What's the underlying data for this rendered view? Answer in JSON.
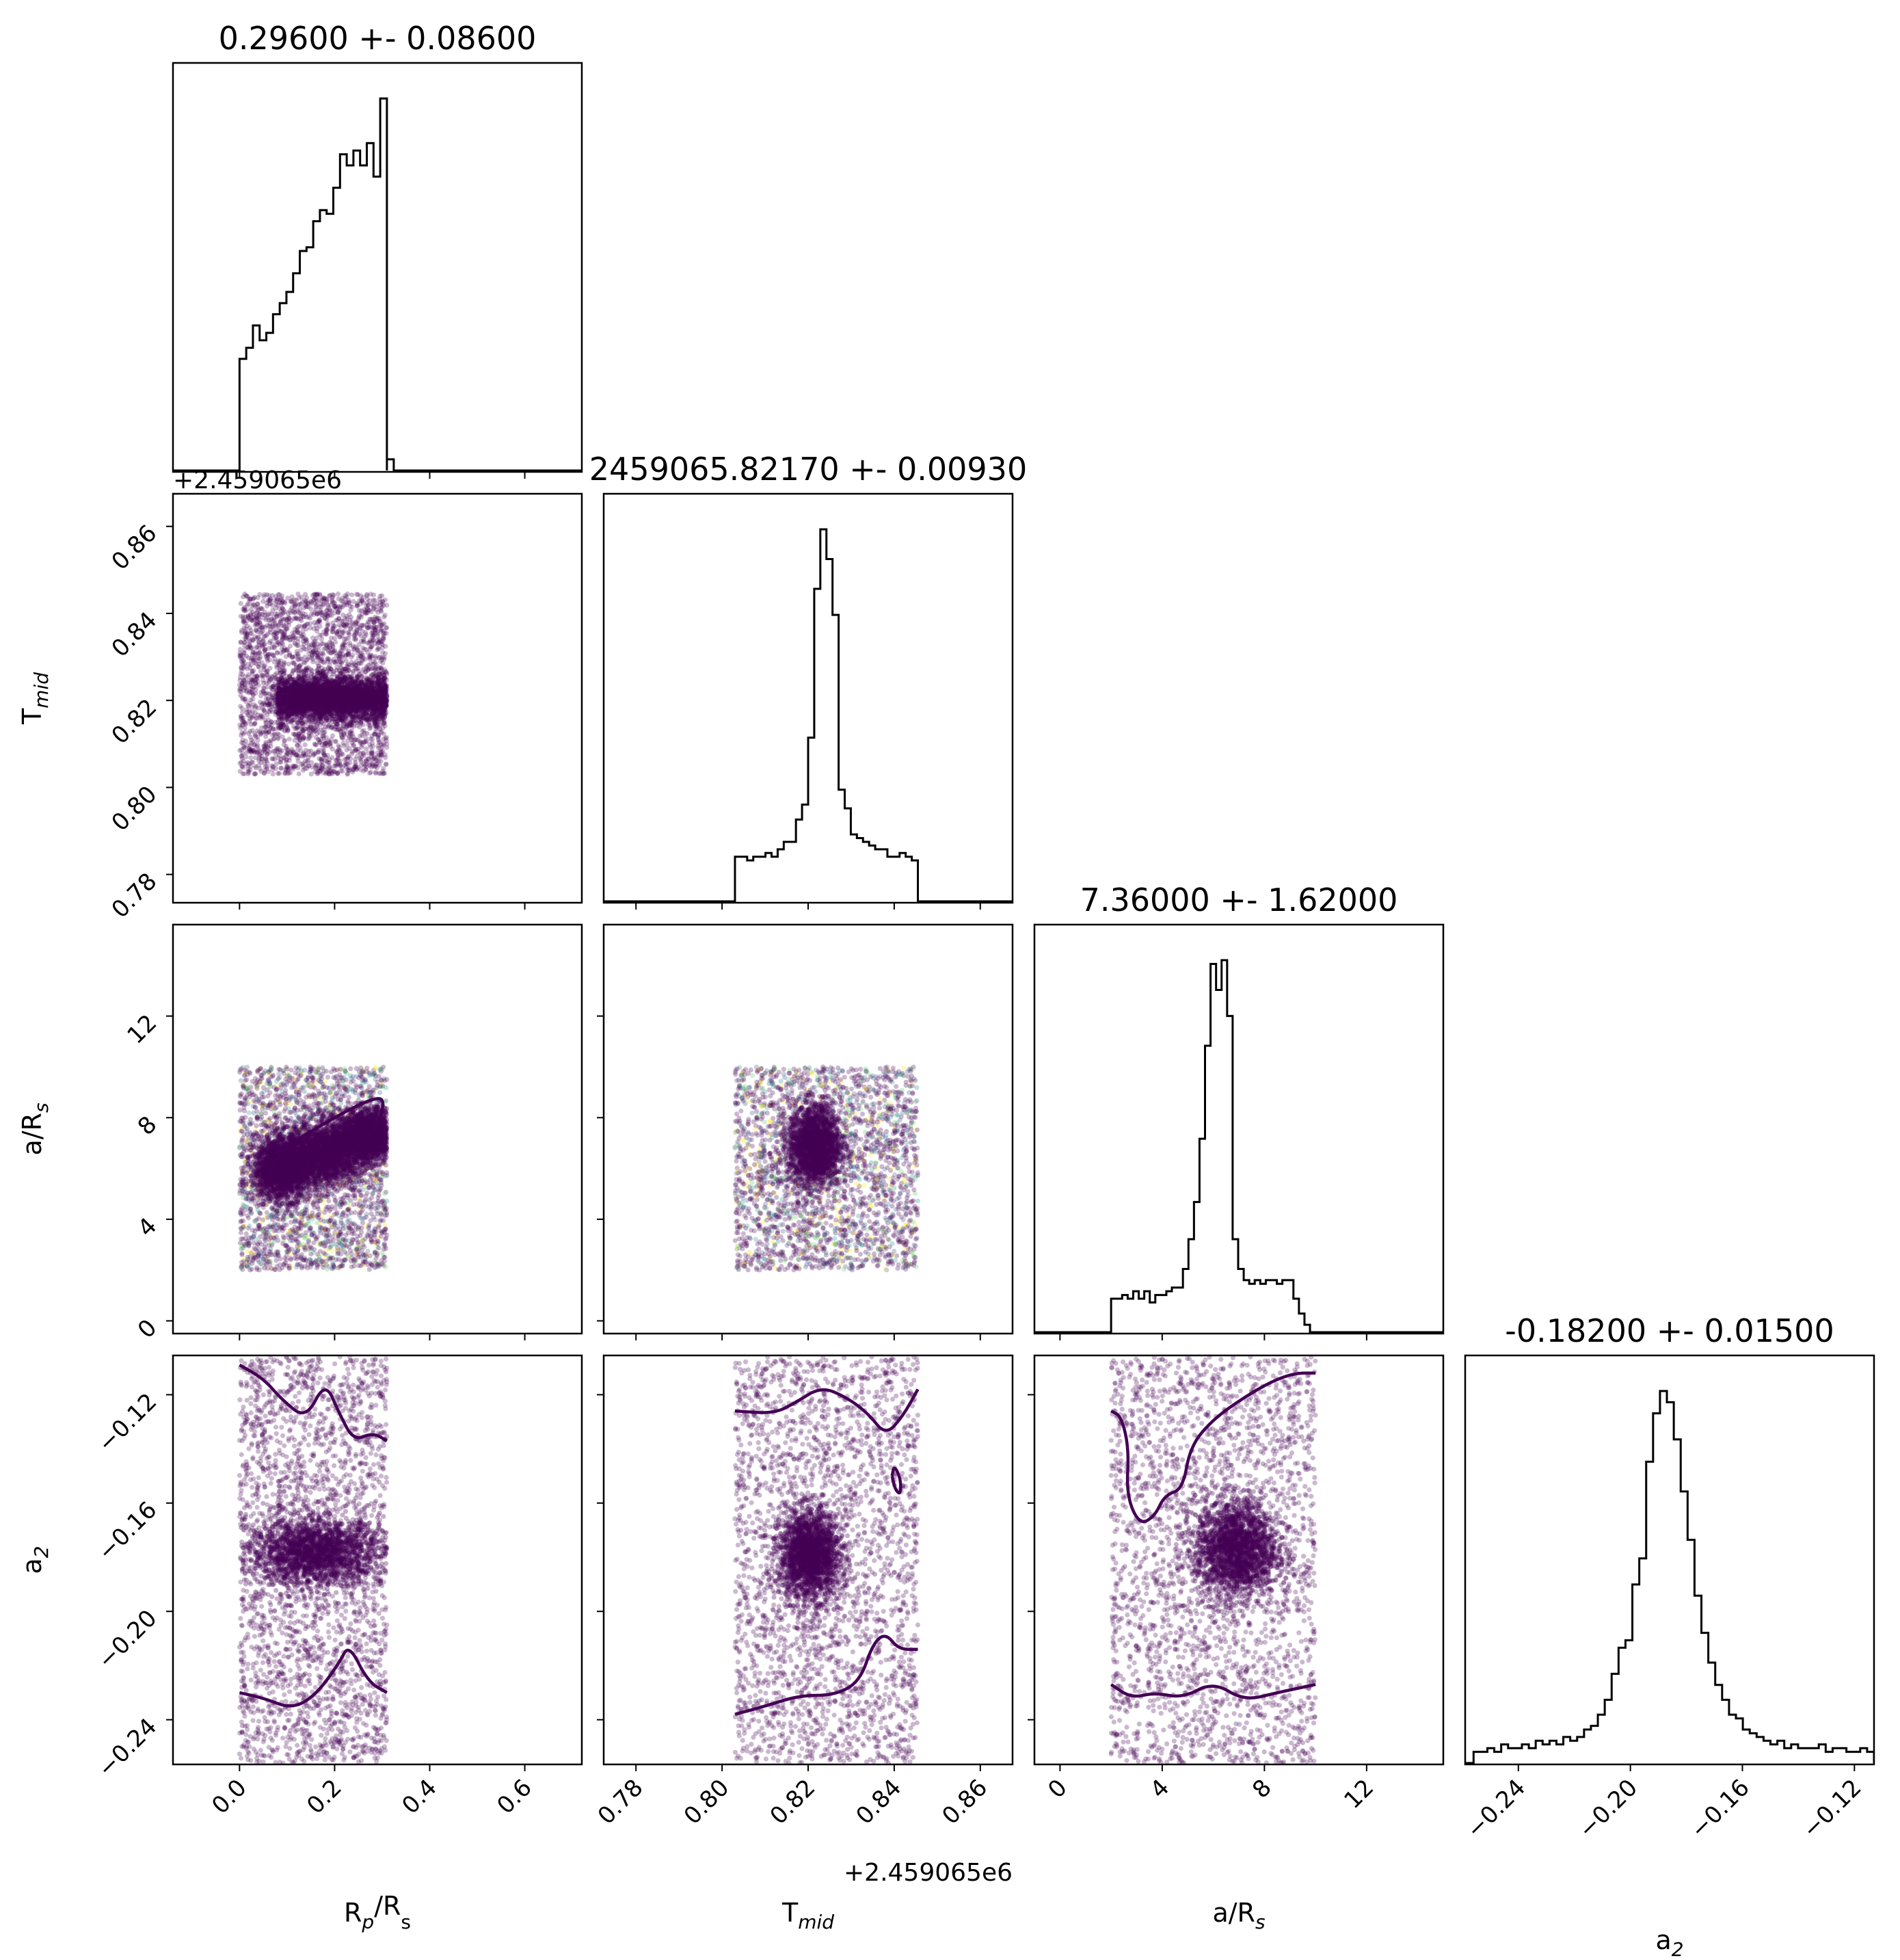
{
  "chart_data": {
    "type": "scatter",
    "parameters": [
      "R_p/R_s",
      "T_mid",
      "a/R_s",
      "a_2"
    ],
    "colors": {
      "line": "#000000",
      "points": "#440154",
      "contour": "#440154",
      "viridis": [
        "#440154",
        "#3b528b",
        "#21918c",
        "#5ec962",
        "#fde725"
      ]
    },
    "panels": {
      "hist": [
        {
          "title": "0.29600 +- 0.08600"
        },
        {
          "title": "2459065.82170 +- 0.00930"
        },
        {
          "title": "7.36000 +- 1.62000"
        },
        {
          "title": "-0.18200 +- 0.01500"
        }
      ]
    },
    "axes": {
      "x": [
        {
          "label_main": "R",
          "label_sub1": "p",
          "label_mid": "/R",
          "label_sub2": "s",
          "range": [
            -0.14,
            0.72
          ],
          "ticks": [
            0.0,
            0.2,
            0.4,
            0.6
          ],
          "tick_labels": [
            "0.0",
            "0.2",
            "0.4",
            "0.6"
          ],
          "offset": ""
        },
        {
          "label_main": "T",
          "label_sub1": "mid",
          "label_mid": "",
          "label_sub2": "",
          "range": [
            0.7725,
            0.8675
          ],
          "ticks": [
            0.78,
            0.8,
            0.82,
            0.84,
            0.86
          ],
          "tick_labels": [
            "0.78",
            "0.80",
            "0.82",
            "0.84",
            "0.86"
          ],
          "offset": "+2.459065e6"
        },
        {
          "label_main": "a/R",
          "label_sub1": "s",
          "label_mid": "",
          "label_sub2": "",
          "range": [
            -1,
            15
          ],
          "ticks": [
            0,
            4,
            8,
            12
          ],
          "tick_labels": [
            "0",
            "4",
            "8",
            "12"
          ],
          "offset": ""
        },
        {
          "label_main": "a",
          "label_sub1": "2",
          "label_mid": "",
          "label_sub2": "",
          "range": [
            -0.259,
            -0.113
          ],
          "ticks": [
            -0.24,
            -0.2,
            -0.16,
            -0.12
          ],
          "tick_labels": [
            "−0.24",
            "−0.20",
            "−0.16",
            "−0.12"
          ],
          "offset": ""
        }
      ],
      "y": [
        null,
        {
          "label_main": "T",
          "label_sub1": "mid",
          "label_sub2": "",
          "range": [
            0.7735,
            0.8675
          ],
          "ticks": [
            0.78,
            0.8,
            0.82,
            0.84,
            0.86
          ],
          "tick_labels": [
            "0.78",
            "0.80",
            "0.82",
            "0.84",
            "0.86"
          ],
          "offset": "+2.459065e6"
        },
        {
          "label_main": "a/R",
          "label_sub1": "s",
          "label_sub2": "",
          "range": [
            -0.5,
            15.6
          ],
          "ticks": [
            0,
            4,
            8,
            12
          ],
          "tick_labels": [
            "0",
            "4",
            "8",
            "12"
          ],
          "offset": ""
        },
        {
          "label_main": "a",
          "label_sub1": "2",
          "label_sub2": "",
          "range": [
            -0.2565,
            -0.1055
          ],
          "ticks": [
            -0.24,
            -0.2,
            -0.16,
            -0.12
          ],
          "tick_labels": [
            "−0.24",
            "−0.20",
            "−0.16",
            "−0.12"
          ],
          "offset": ""
        }
      ]
    },
    "histograms": [
      {
        "x_start": 0.0,
        "x_end": 0.31,
        "counts": [
          0.3,
          0.33,
          0.39,
          0.35,
          0.37,
          0.42,
          0.45,
          0.48,
          0.53,
          0.59,
          0.6,
          0.67,
          0.7,
          0.69,
          0.76,
          0.85,
          0.82,
          0.86,
          0.82,
          0.88,
          0.79,
          1.0
        ],
        "tail": [
          [
            0.31,
            0.03
          ]
        ]
      },
      {
        "x_start": 0.803,
        "x_end": 0.8455,
        "counts": [
          0.12,
          0.12,
          0.11,
          0.12,
          0.12,
          0.13,
          0.12,
          0.14,
          0.16,
          0.16,
          0.22,
          0.26,
          0.44,
          0.84,
          1.0,
          0.92,
          0.77,
          0.3,
          0.25,
          0.18,
          0.17,
          0.16,
          0.15,
          0.14,
          0.14,
          0.12,
          0.12,
          0.13,
          0.12,
          0.11
        ],
        "tail": []
      },
      {
        "x_start": 2.0,
        "x_end": 10.0,
        "counts": [
          0.09,
          0.09,
          0.1,
          0.09,
          0.11,
          0.09,
          0.11,
          0.08,
          0.1,
          0.1,
          0.11,
          0.12,
          0.12,
          0.17,
          0.25,
          0.35,
          0.52,
          0.77,
          0.99,
          0.92,
          1.0,
          0.85,
          0.25,
          0.17,
          0.14,
          0.13,
          0.14,
          0.13,
          0.14,
          0.14,
          0.13,
          0.14,
          0.14,
          0.09,
          0.05,
          0.02,
          0.0
        ],
        "tail": []
      },
      {
        "x_start": -0.256,
        "x_end": -0.113,
        "counts": [
          0.03,
          0.03,
          0.04,
          0.03,
          0.05,
          0.04,
          0.04,
          0.05,
          0.04,
          0.06,
          0.05,
          0.06,
          0.05,
          0.07,
          0.06,
          0.07,
          0.09,
          0.1,
          0.13,
          0.17,
          0.24,
          0.31,
          0.33,
          0.48,
          0.55,
          0.81,
          0.94,
          1.0,
          0.97,
          0.87,
          0.73,
          0.6,
          0.45,
          0.35,
          0.27,
          0.21,
          0.17,
          0.13,
          0.12,
          0.09,
          0.08,
          0.07,
          0.06,
          0.05,
          0.06,
          0.04,
          0.05,
          0.04,
          0.04,
          0.04,
          0.05,
          0.03,
          0.04,
          0.04,
          0.03,
          0.03,
          0.04,
          0.03
        ],
        "tail": []
      }
    ],
    "scatter": [
      {
        "row": 1,
        "col": 0,
        "x_box": [
          0.0,
          0.31
        ],
        "y_box": [
          0.803,
          0.8445
        ],
        "cores": [
          {
            "x": [
              0.08,
              0.31
            ],
            "y": [
              0.8165,
              0.8245
            ]
          }
        ],
        "density": [
          [
            0.2,
            0.8205,
            0.05,
            0.0012
          ]
        ],
        "colored": false
      },
      {
        "row": 2,
        "col": 0,
        "x_box": [
          0.0,
          0.31
        ],
        "y_box": [
          2.0,
          10.0
        ],
        "density": [
          [
            0.09,
            6.0,
            0.03,
            0.6
          ],
          [
            0.18,
            6.6,
            0.04,
            0.6
          ],
          [
            0.27,
            7.3,
            0.03,
            0.5
          ]
        ],
        "colored": true
      },
      {
        "row": 2,
        "col": 1,
        "x_box": [
          0.803,
          0.8455
        ],
        "y_box": [
          2.0,
          10.0
        ],
        "density": [
          [
            0.8215,
            6.9,
            0.003,
            0.8
          ]
        ],
        "colored": true
      },
      {
        "row": 3,
        "col": 0,
        "x_box": [
          0.0,
          0.31
        ],
        "y_box": [
          -0.256,
          -0.106
        ],
        "density": [
          [
            0.16,
            -0.178,
            0.07,
            0.006
          ]
        ],
        "colored": false
      },
      {
        "row": 3,
        "col": 1,
        "x_box": [
          0.803,
          0.8455
        ],
        "y_box": [
          -0.256,
          -0.106
        ],
        "density": [
          [
            0.8205,
            -0.179,
            0.0035,
            0.008
          ]
        ],
        "colored": false
      },
      {
        "row": 3,
        "col": 2,
        "x_box": [
          2.0,
          10.0
        ],
        "y_box": [
          -0.256,
          -0.106
        ],
        "density": [
          [
            6.9,
            -0.177,
            0.8,
            0.009
          ]
        ],
        "colored": false
      }
    ],
    "contours": [
      {
        "row": 2,
        "col": 0,
        "points": [
          [
            0.08,
            5.2
          ],
          [
            0.12,
            5.7
          ],
          [
            0.2,
            6.3
          ],
          [
            0.28,
            7.2
          ],
          [
            0.31,
            8.8
          ],
          [
            0.27,
            8.7
          ],
          [
            0.18,
            7.8
          ],
          [
            0.11,
            7.0
          ],
          [
            0.06,
            6.0
          ],
          [
            0.07,
            5.1
          ],
          [
            0.08,
            5.2
          ]
        ]
      },
      {
        "row": 3,
        "col": 0,
        "points": [
          [
            0.0,
            -0.109
          ],
          [
            0.05,
            -0.114
          ],
          [
            0.09,
            -0.122
          ],
          [
            0.14,
            -0.129
          ],
          [
            0.18,
            -0.115
          ],
          [
            0.21,
            -0.127
          ],
          [
            0.24,
            -0.137
          ],
          [
            0.28,
            -0.134
          ],
          [
            0.31,
            -0.137
          ]
        ]
      },
      {
        "row": 3,
        "col": 0,
        "points": [
          [
            0.0,
            -0.23
          ],
          [
            0.05,
            -0.232
          ],
          [
            0.11,
            -0.236
          ],
          [
            0.16,
            -0.231
          ],
          [
            0.21,
            -0.219
          ],
          [
            0.23,
            -0.212
          ],
          [
            0.27,
            -0.226
          ],
          [
            0.31,
            -0.23
          ]
        ]
      },
      {
        "row": 3,
        "col": 1,
        "points": [
          [
            0.803,
            -0.126
          ],
          [
            0.812,
            -0.127
          ],
          [
            0.817,
            -0.123
          ],
          [
            0.823,
            -0.117
          ],
          [
            0.829,
            -0.121
          ],
          [
            0.834,
            -0.127
          ],
          [
            0.838,
            -0.135
          ],
          [
            0.842,
            -0.128
          ],
          [
            0.8455,
            -0.118
          ]
        ]
      },
      {
        "row": 3,
        "col": 1,
        "points": [
          [
            0.803,
            -0.238
          ],
          [
            0.81,
            -0.235
          ],
          [
            0.818,
            -0.231
          ],
          [
            0.826,
            -0.231
          ],
          [
            0.832,
            -0.226
          ],
          [
            0.835,
            -0.212
          ],
          [
            0.838,
            -0.208
          ],
          [
            0.841,
            -0.214
          ],
          [
            0.8455,
            -0.214
          ]
        ]
      },
      {
        "row": 3,
        "col": 1,
        "points": [
          [
            0.8395,
            -0.15
          ],
          [
            0.84,
            -0.146
          ],
          [
            0.8415,
            -0.151
          ],
          [
            0.8415,
            -0.157
          ],
          [
            0.8402,
            -0.155
          ],
          [
            0.8395,
            -0.15
          ]
        ]
      },
      {
        "row": 3,
        "col": 2,
        "points": [
          [
            2.0,
            -0.126
          ],
          [
            2.4,
            -0.128
          ],
          [
            2.7,
            -0.14
          ],
          [
            2.6,
            -0.157
          ],
          [
            3.1,
            -0.168
          ],
          [
            3.7,
            -0.165
          ],
          [
            4.1,
            -0.157
          ],
          [
            4.8,
            -0.155
          ],
          [
            5.1,
            -0.139
          ],
          [
            6.0,
            -0.129
          ],
          [
            7.2,
            -0.121
          ],
          [
            8.3,
            -0.115
          ],
          [
            9.2,
            -0.112
          ],
          [
            10.0,
            -0.112
          ]
        ]
      },
      {
        "row": 3,
        "col": 2,
        "points": [
          [
            2.0,
            -0.227
          ],
          [
            2.8,
            -0.232
          ],
          [
            3.7,
            -0.23
          ],
          [
            4.8,
            -0.232
          ],
          [
            6.0,
            -0.226
          ],
          [
            7.2,
            -0.233
          ],
          [
            8.5,
            -0.23
          ],
          [
            10.0,
            -0.227
          ]
        ]
      }
    ]
  }
}
